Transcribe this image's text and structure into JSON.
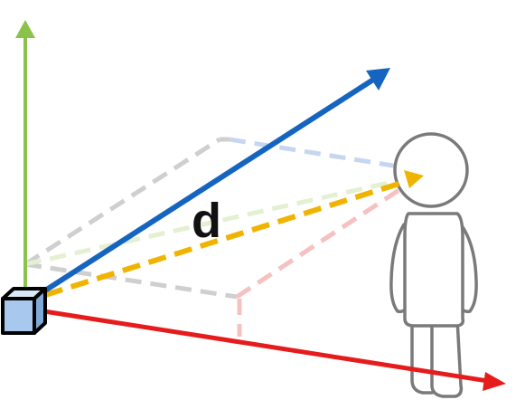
{
  "diagram": {
    "distance_label": "d",
    "colors": {
      "y_axis": "#8bc34a",
      "z_axis": "#1565c0",
      "x_axis": "#e61c1c",
      "distance_vector": "#f0b400",
      "camera_fill": "#a8c8ee"
    },
    "icons": [
      "camera-cube-icon",
      "person-icon"
    ]
  }
}
